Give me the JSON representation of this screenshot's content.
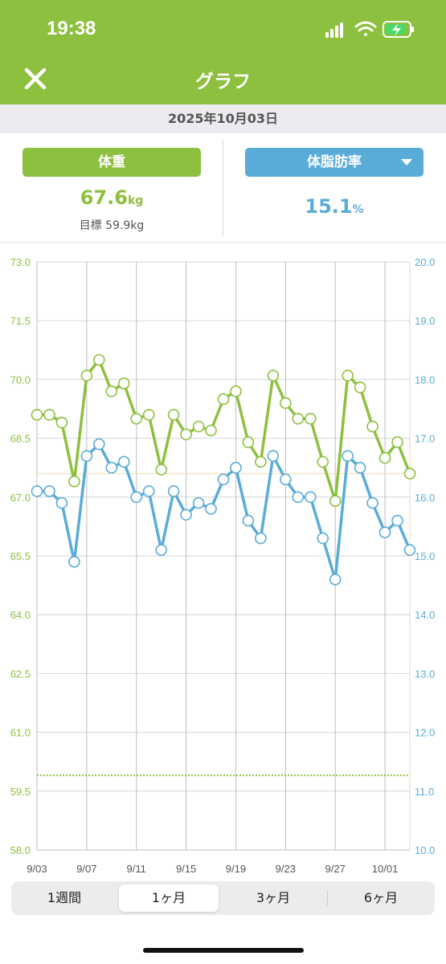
{
  "status": {
    "time": "19:38"
  },
  "nav": {
    "title": "グラフ"
  },
  "date": "2025年10月03日",
  "summary": {
    "weight_label": "体重",
    "weight_value": "67.6",
    "weight_unit": "kg",
    "goal_text": "目標 59.9kg",
    "fat_label": "体脂肪率",
    "fat_value": "15.1",
    "fat_unit": "%"
  },
  "colors": {
    "weight": "#8dc03f",
    "fat": "#5aacd8",
    "header": "#8dc03f"
  },
  "chart_data": {
    "type": "line",
    "x_labels": [
      "9/03",
      "9/07",
      "9/11",
      "9/15",
      "9/19",
      "9/23",
      "9/27",
      "10/01"
    ],
    "x_dates": [
      "9/03",
      "9/04",
      "9/05",
      "9/06",
      "9/07",
      "9/08",
      "9/09",
      "9/10",
      "9/11",
      "9/12",
      "9/13",
      "9/14",
      "9/15",
      "9/16",
      "9/17",
      "9/18",
      "9/19",
      "9/20",
      "9/21",
      "9/22",
      "9/23",
      "9/24",
      "9/25",
      "9/26",
      "9/27",
      "9/28",
      "9/29",
      "9/30",
      "10/01",
      "10/02",
      "10/03"
    ],
    "left_ticks": [
      "73.0",
      "71.5",
      "70.0",
      "68.5",
      "67.0",
      "65.5",
      "64.0",
      "62.5",
      "61.0",
      "59.5",
      "58.0"
    ],
    "right_ticks": [
      "20.0",
      "19.0",
      "18.0",
      "17.0",
      "16.0",
      "15.0",
      "14.0",
      "13.0",
      "12.0",
      "11.0",
      "10.0"
    ],
    "left_range": [
      58.0,
      73.0
    ],
    "right_range": [
      10.0,
      20.0
    ],
    "goal_weight": 59.9,
    "current_weight_line": 67.6,
    "series": [
      {
        "axis": "left",
        "values": [
          69.1,
          69.1,
          68.9,
          67.4,
          70.1,
          70.5,
          69.7,
          69.9,
          69.0,
          69.1,
          67.7,
          69.1,
          68.6,
          68.8,
          68.7,
          69.5,
          69.7,
          68.4,
          67.9,
          70.1,
          69.4,
          69.0,
          69.0,
          67.9,
          66.9,
          70.1,
          69.8,
          68.8,
          68.0,
          68.4,
          67.6
        ]
      },
      {
        "axis": "right",
        "values": [
          16.1,
          16.1,
          15.9,
          14.9,
          16.7,
          16.9,
          16.5,
          16.6,
          16.0,
          16.1,
          15.1,
          16.1,
          15.7,
          15.9,
          15.8,
          16.3,
          16.5,
          15.6,
          15.3,
          16.7,
          16.3,
          16.0,
          16.0,
          15.3,
          14.6,
          16.7,
          16.5,
          15.9,
          15.4,
          15.6,
          15.1
        ]
      }
    ]
  },
  "periods": [
    {
      "label": "1週間",
      "active": false
    },
    {
      "label": "1ヶ月",
      "active": true
    },
    {
      "label": "3ヶ月",
      "active": false
    },
    {
      "label": "6ヶ月",
      "active": false
    }
  ]
}
